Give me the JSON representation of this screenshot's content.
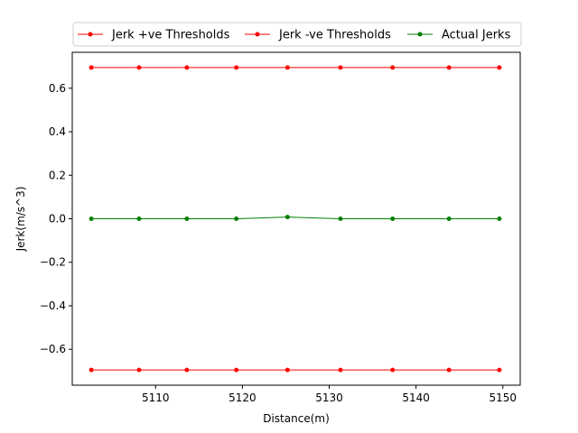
{
  "chart_data": {
    "type": "line",
    "title": "",
    "xlabel": "Distance(m)",
    "ylabel": "Jerk(m/s^3)",
    "xlim": [
      5100.4,
      5152.0
    ],
    "ylim": [
      -0.765,
      0.765
    ],
    "xticks": [
      5110,
      5120,
      5130,
      5140,
      5150
    ],
    "yticks": [
      -0.6,
      -0.4,
      -0.2,
      0.0,
      0.2,
      0.4,
      0.6
    ],
    "ytick_labels": [
      "−0.6",
      "−0.4",
      "−0.2",
      "0.0",
      "0.2",
      "0.4",
      "0.6"
    ],
    "grid": false,
    "legend_position": "top, above plot",
    "x": [
      5102.6,
      5108.1,
      5113.6,
      5119.3,
      5125.2,
      5131.3,
      5137.3,
      5143.8,
      5149.6
    ],
    "series": [
      {
        "name": "Jerk +ve Thresholds",
        "color": "#ff0000",
        "values": [
          0.695,
          0.695,
          0.695,
          0.695,
          0.695,
          0.695,
          0.695,
          0.695,
          0.695
        ]
      },
      {
        "name": "Jerk -ve Thresholds",
        "color": "#ff0000",
        "values": [
          -0.695,
          -0.695,
          -0.695,
          -0.695,
          -0.695,
          -0.695,
          -0.695,
          -0.695,
          -0.695
        ]
      },
      {
        "name": "Actual Jerks",
        "color": "#008000",
        "values": [
          0.0,
          0.0,
          0.0,
          0.0,
          0.008,
          0.0,
          0.0,
          0.0,
          0.0
        ]
      }
    ]
  }
}
